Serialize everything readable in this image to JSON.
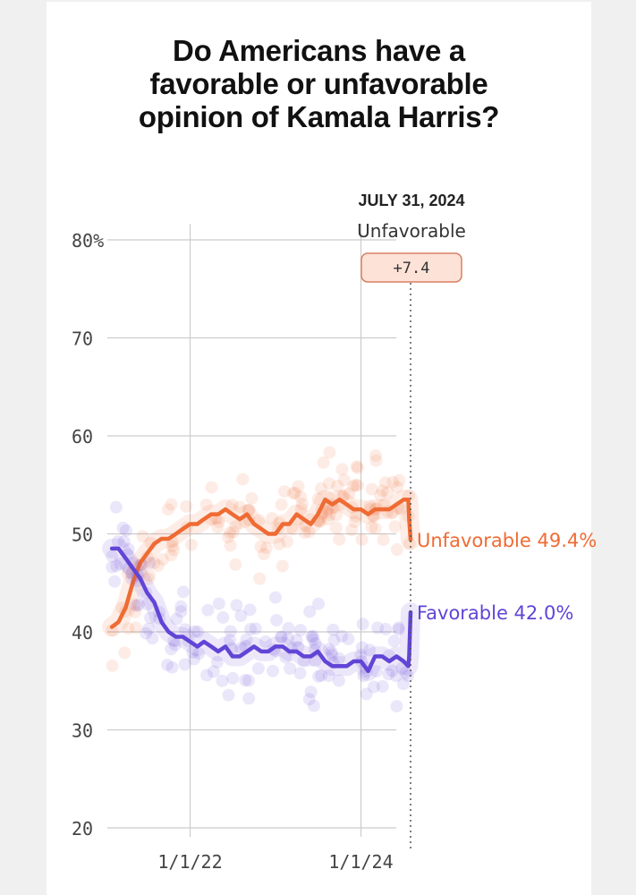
{
  "page": {
    "title_lines": [
      "Do Americans have a",
      "favorable or unfavorable",
      "opinion of Kamala Harris?"
    ]
  },
  "colors": {
    "unfavorable": "#ef6b34",
    "favorable": "#6145d6",
    "grid": "#cccccc",
    "badge_fill": "#fde2d8",
    "badge_stroke": "#d98060"
  },
  "chart_data": {
    "type": "line",
    "title": "Do Americans have a favorable or unfavorable opinion of Kamala Harris?",
    "xlabel": "",
    "ylabel": "",
    "y_ticks": [
      "80%",
      "70",
      "60",
      "50",
      "40",
      "30",
      "20"
    ],
    "y_tick_values": [
      80,
      70,
      60,
      50,
      40,
      30,
      20
    ],
    "ylim": [
      20,
      80
    ],
    "x_ticks": [
      "1/1/22",
      "1/1/24"
    ],
    "x_tick_values": [
      "2022-01-01",
      "2024-01-01"
    ],
    "xlim": [
      "2021-01-20",
      "2024-07-31"
    ],
    "grid": true,
    "legend": "none; end labels on the right",
    "annotation": {
      "date": "JULY 31, 2024",
      "leader": "Unfavorable",
      "margin": "+7.4"
    },
    "series": [
      {
        "name": "Unfavorable",
        "end_label": "Unfavorable 49.4%",
        "x": [
          "2021-02-01",
          "2021-03-01",
          "2021-04-01",
          "2021-05-01",
          "2021-06-01",
          "2021-07-01",
          "2021-08-01",
          "2021-09-01",
          "2021-10-01",
          "2021-11-01",
          "2021-12-01",
          "2022-01-01",
          "2022-02-01",
          "2022-03-01",
          "2022-04-01",
          "2022-05-01",
          "2022-06-01",
          "2022-07-01",
          "2022-08-01",
          "2022-09-01",
          "2022-10-01",
          "2022-11-01",
          "2022-12-01",
          "2023-01-01",
          "2023-02-01",
          "2023-03-01",
          "2023-04-01",
          "2023-05-01",
          "2023-06-01",
          "2023-07-01",
          "2023-08-01",
          "2023-09-01",
          "2023-10-01",
          "2023-11-01",
          "2023-12-01",
          "2024-01-01",
          "2024-02-01",
          "2024-03-01",
          "2024-04-01",
          "2024-05-01",
          "2024-06-01",
          "2024-07-01",
          "2024-07-21",
          "2024-07-25",
          "2024-07-31"
        ],
        "values": [
          40.5,
          41,
          42.5,
          45,
          47,
          48,
          49,
          49.5,
          49.5,
          50,
          50.5,
          51,
          51,
          51.5,
          52,
          52,
          52.5,
          52,
          51.5,
          52,
          51,
          50.5,
          50,
          50,
          51,
          51,
          52,
          51.5,
          51,
          52,
          53.5,
          53,
          53.5,
          53,
          52.5,
          52.5,
          52,
          52.5,
          52.5,
          52.5,
          53,
          53.5,
          53.5,
          51.5,
          49.4
        ]
      },
      {
        "name": "Favorable",
        "end_label": "Favorable 42.0%",
        "x": [
          "2021-02-01",
          "2021-03-01",
          "2021-04-01",
          "2021-05-01",
          "2021-06-01",
          "2021-07-01",
          "2021-08-01",
          "2021-09-01",
          "2021-10-01",
          "2021-11-01",
          "2021-12-01",
          "2022-01-01",
          "2022-02-01",
          "2022-03-01",
          "2022-04-01",
          "2022-05-01",
          "2022-06-01",
          "2022-07-01",
          "2022-08-01",
          "2022-09-01",
          "2022-10-01",
          "2022-11-01",
          "2022-12-01",
          "2023-01-01",
          "2023-02-01",
          "2023-03-01",
          "2023-04-01",
          "2023-05-01",
          "2023-06-01",
          "2023-07-01",
          "2023-08-01",
          "2023-09-01",
          "2023-10-01",
          "2023-11-01",
          "2023-12-01",
          "2024-01-01",
          "2024-02-01",
          "2024-03-01",
          "2024-04-01",
          "2024-05-01",
          "2024-06-01",
          "2024-07-01",
          "2024-07-21",
          "2024-07-25",
          "2024-07-31"
        ],
        "values": [
          48.5,
          48.5,
          47.5,
          46.5,
          45.5,
          44,
          43,
          41,
          40,
          39.5,
          39.5,
          39,
          38.5,
          39,
          38.5,
          38,
          38.5,
          37.5,
          37.5,
          38,
          38.5,
          38,
          38,
          38.5,
          38.5,
          38,
          38,
          37.5,
          37.5,
          38,
          37,
          36.5,
          36.5,
          36.5,
          37,
          37,
          36,
          37.5,
          37.5,
          37,
          37.5,
          37,
          36.5,
          37.5,
          42.0
        ]
      }
    ]
  }
}
